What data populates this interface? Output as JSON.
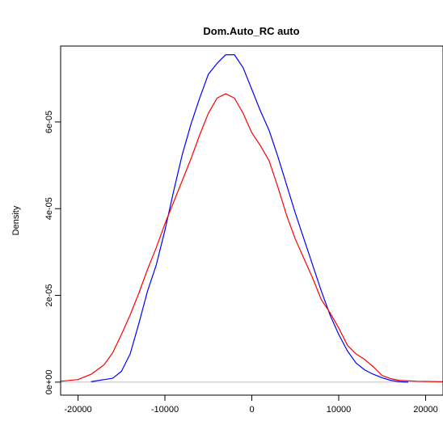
{
  "chart_data": {
    "type": "line",
    "title": "Dom.Auto_RC auto",
    "xlabel": "",
    "ylabel": "Density",
    "xlim": [
      -22000,
      22000
    ],
    "ylim": [
      -3e-06,
      7.75e-05
    ],
    "x_ticks": [
      {
        "value": -20000,
        "label": "-20000"
      },
      {
        "value": -10000,
        "label": "-10000"
      },
      {
        "value": 0,
        "label": "0"
      },
      {
        "value": 10000,
        "label": "10000"
      },
      {
        "value": 20000,
        "label": "20000"
      }
    ],
    "y_ticks": [
      {
        "value": 0,
        "label": "0e+00"
      },
      {
        "value": 2e-05,
        "label": "2e-05"
      },
      {
        "value": 4e-05,
        "label": "4e-05"
      },
      {
        "value": 6e-05,
        "label": "6e-05"
      }
    ],
    "baseline": 0,
    "baseline_color": "#bfbfbf",
    "series": [
      {
        "color": "#0000ff",
        "points": [
          [
            -18500,
            1e-07
          ],
          [
            -16000,
            9e-07
          ],
          [
            -15000,
            2.5e-06
          ],
          [
            -14000,
            6.5e-06
          ],
          [
            -13000,
            1.35e-05
          ],
          [
            -12000,
            2.1e-05
          ],
          [
            -11000,
            2.7e-05
          ],
          [
            -10000,
            3.5e-05
          ],
          [
            -9000,
            4.4e-05
          ],
          [
            -8000,
            5.25e-05
          ],
          [
            -7000,
            5.95e-05
          ],
          [
            -6000,
            6.55e-05
          ],
          [
            -5000,
            7.1e-05
          ],
          [
            -4000,
            7.35e-05
          ],
          [
            -3000,
            7.55e-05
          ],
          [
            -2000,
            7.55e-05
          ],
          [
            -1000,
            7.25e-05
          ],
          [
            0,
            6.75e-05
          ],
          [
            1000,
            6.25e-05
          ],
          [
            2000,
            5.8e-05
          ],
          [
            3000,
            5.2e-05
          ],
          [
            4000,
            4.55e-05
          ],
          [
            5000,
            3.9e-05
          ],
          [
            6000,
            3.3e-05
          ],
          [
            7000,
            2.7e-05
          ],
          [
            8000,
            2.1e-05
          ],
          [
            9000,
            1.55e-05
          ],
          [
            10000,
            1.1e-05
          ],
          [
            11000,
            7.2e-06
          ],
          [
            12000,
            4.4e-06
          ],
          [
            13000,
            2.8e-06
          ],
          [
            14000,
            1.8e-06
          ],
          [
            15000,
            1e-06
          ],
          [
            16000,
            4e-07
          ],
          [
            17000,
            1e-07
          ],
          [
            18000,
            0.0
          ]
        ]
      },
      {
        "color": "#ff0000",
        "points": [
          [
            -22000,
            2e-07
          ],
          [
            -20000,
            6e-07
          ],
          [
            -18500,
            1.8e-06
          ],
          [
            -17000,
            4e-06
          ],
          [
            -16000,
            6.8e-06
          ],
          [
            -15000,
            1.1e-05
          ],
          [
            -14000,
            1.55e-05
          ],
          [
            -13000,
            2.05e-05
          ],
          [
            -12000,
            2.6e-05
          ],
          [
            -11000,
            3.1e-05
          ],
          [
            -10000,
            3.65e-05
          ],
          [
            -9000,
            4.15e-05
          ],
          [
            -8000,
            4.65e-05
          ],
          [
            -7000,
            5.15e-05
          ],
          [
            -6000,
            5.7e-05
          ],
          [
            -5000,
            6.2e-05
          ],
          [
            -4000,
            6.55e-05
          ],
          [
            -3000,
            6.65e-05
          ],
          [
            -2000,
            6.55e-05
          ],
          [
            -1000,
            6.2e-05
          ],
          [
            0,
            5.75e-05
          ],
          [
            1000,
            5.45e-05
          ],
          [
            2000,
            5.1e-05
          ],
          [
            3000,
            4.5e-05
          ],
          [
            4000,
            3.85e-05
          ],
          [
            5000,
            3.3e-05
          ],
          [
            6000,
            2.85e-05
          ],
          [
            7000,
            2.4e-05
          ],
          [
            8000,
            1.9e-05
          ],
          [
            9000,
            1.6e-05
          ],
          [
            10000,
            1.25e-05
          ],
          [
            11000,
            8.5e-06
          ],
          [
            12000,
            6.5e-06
          ],
          [
            13000,
            5.2e-06
          ],
          [
            14000,
            3.5e-06
          ],
          [
            15000,
            1.5e-06
          ],
          [
            16000,
            8e-07
          ],
          [
            17000,
            4e-07
          ],
          [
            19000,
            2e-07
          ],
          [
            22000,
            1e-07
          ]
        ]
      }
    ]
  }
}
